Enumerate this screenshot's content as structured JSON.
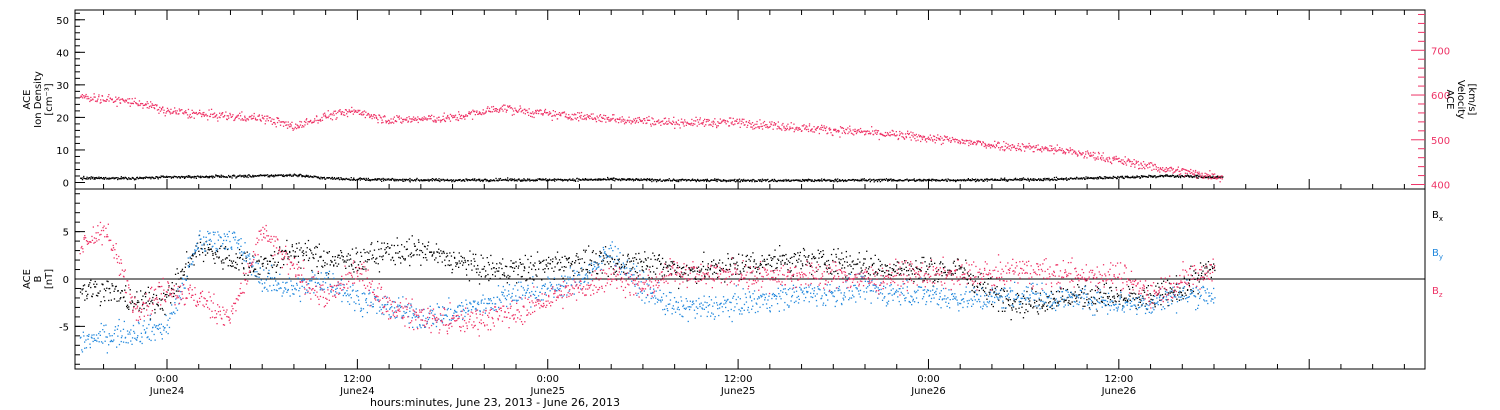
{
  "colors": {
    "black": "#000000",
    "pink": "#ee3366",
    "blue": "#2288dd"
  },
  "xaxis": {
    "title": "hours:minutes, June 23, 2013 - June 26, 2013",
    "range_hours": [
      -5.8,
      79.3
    ],
    "ticks": [
      {
        "hour": 0,
        "time": "0:00",
        "day": "June24"
      },
      {
        "hour": 12,
        "time": "12:00",
        "day": "June24"
      },
      {
        "hour": 24,
        "time": "0:00",
        "day": "June25"
      },
      {
        "hour": 36,
        "time": "12:00",
        "day": "June25"
      },
      {
        "hour": 48,
        "time": "0:00",
        "day": "June26"
      },
      {
        "hour": 60,
        "time": "12:00",
        "day": "June26"
      }
    ]
  },
  "chart_data": [
    {
      "type": "scatter",
      "panel": "top",
      "ylabel_lines": [
        "ACE",
        "Ion Density",
        "[cm⁻³]"
      ],
      "ylabel2_lines": [
        "ACE",
        "Velocity",
        "[km/s]"
      ],
      "ylim": [
        -2,
        53
      ],
      "yticks": [
        0,
        10,
        20,
        30,
        40,
        50
      ],
      "y2lim": [
        390,
        790
      ],
      "y2ticks": [
        400,
        500,
        600,
        700
      ],
      "x": [
        -5.5,
        -2,
        0,
        3,
        6,
        8,
        10,
        12,
        14,
        18,
        21,
        24,
        28,
        32,
        36,
        40,
        44,
        48,
        52,
        56,
        60,
        63,
        66.5
      ],
      "series": [
        {
          "axis": "left",
          "color": "black",
          "scatter": 0.4,
          "values": [
            1.5,
            1.5,
            1.8,
            2.0,
            2.2,
            2.5,
            1.5,
            1.2,
            1.0,
            0.9,
            1.0,
            1.0,
            1.1,
            0.9,
            0.8,
            0.8,
            0.9,
            0.9,
            1.0,
            1.2,
            1.8,
            2.2,
            1.8
          ]
        },
        {
          "axis": "right",
          "color": "pink",
          "scatter": 10,
          "values": [
            598,
            585,
            565,
            555,
            550,
            530,
            555,
            565,
            545,
            550,
            572,
            558,
            548,
            540,
            540,
            528,
            518,
            505,
            490,
            480,
            455,
            435,
            418
          ]
        }
      ]
    },
    {
      "type": "scatter",
      "panel": "bottom",
      "ylabel_lines": [
        "ACE",
        "B",
        "[nT]"
      ],
      "ylim": [
        -9.5,
        9.5
      ],
      "yticks": [
        -5,
        0,
        5
      ],
      "zero_line": true,
      "x": [
        -5.5,
        -4,
        -2,
        0,
        2,
        4,
        6,
        8,
        10,
        12,
        14,
        16,
        18,
        20,
        22,
        24,
        26,
        28,
        30,
        32,
        34,
        36,
        38,
        40,
        42,
        44,
        46,
        48,
        50,
        52,
        54,
        56,
        58,
        60,
        62,
        64,
        66
      ],
      "series": [
        {
          "name": "Bx",
          "legend_main": "B",
          "legend_sub": "x",
          "color": "black",
          "scatter": 1.4,
          "values": [
            -1,
            -1,
            -2.5,
            -2,
            3.5,
            2,
            1.5,
            3,
            2,
            2,
            3,
            3,
            2,
            1,
            1,
            1.5,
            2,
            1.5,
            2,
            1,
            1,
            1.5,
            2,
            2,
            2,
            1.5,
            1,
            1,
            1,
            -1.5,
            -2.5,
            -2,
            -1.5,
            -2,
            -2,
            -1,
            1.5
          ]
        },
        {
          "name": "By",
          "legend_main": "B",
          "legend_sub": "y",
          "color": "blue",
          "scatter": 1.3,
          "values": [
            -6.5,
            -6,
            -5.5,
            -5,
            4,
            4.5,
            0,
            -1,
            0,
            -2,
            -3,
            -4,
            -3.5,
            -2.5,
            -1.5,
            -1,
            0,
            3,
            -1,
            -3,
            -3,
            -2.5,
            -2,
            -1.5,
            -1.5,
            -1,
            -1.5,
            -1.5,
            -2,
            -2,
            -1.5,
            -2,
            -2,
            -2.5,
            -2.5,
            -1.5,
            -1.5
          ]
        },
        {
          "name": "Bz",
          "legend_main": "B",
          "legend_sub": "z",
          "color": "pink",
          "scatter": 1.4,
          "values": [
            3,
            5.5,
            -3,
            -1,
            -2,
            -4,
            5,
            1,
            -2,
            1,
            -3,
            -4,
            -4.5,
            -4,
            -3.5,
            -2,
            -1,
            0.5,
            -1,
            1,
            0.5,
            0.5,
            0.5,
            0.5,
            0.5,
            0,
            0.5,
            0.5,
            0.5,
            0.5,
            1,
            0.5,
            0.5,
            0.5,
            -1.5,
            0,
            1
          ]
        }
      ]
    }
  ]
}
